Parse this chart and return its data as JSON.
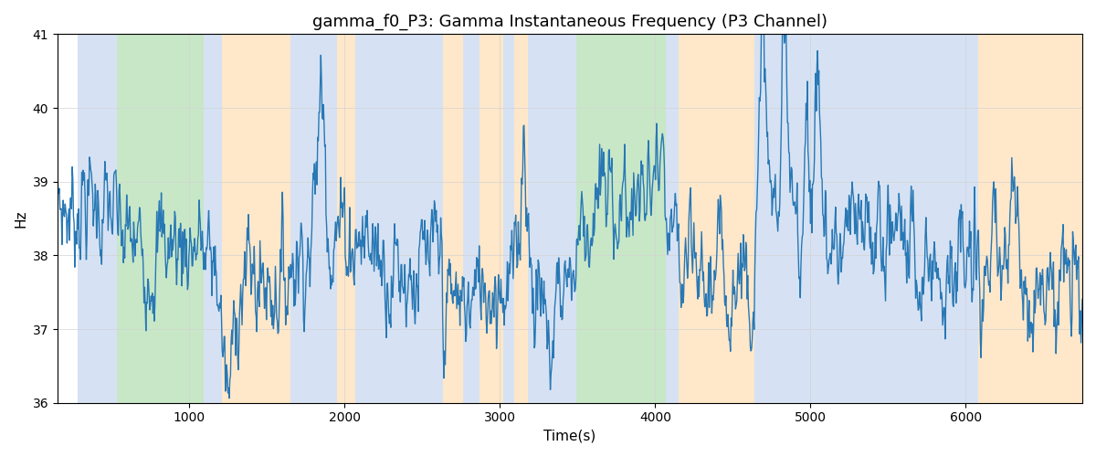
{
  "title": "gamma_f0_P3: Gamma Instantaneous Frequency (P3 Channel)",
  "xlabel": "Time(s)",
  "ylabel": "Hz",
  "ylim": [
    36,
    41
  ],
  "xlim": [
    150,
    6750
  ],
  "line_color": "#2878b5",
  "line_width": 1.0,
  "bg_color": "white",
  "colored_bands": [
    {
      "start": 280,
      "end": 530,
      "color": "#aec6e8",
      "alpha": 0.5
    },
    {
      "start": 530,
      "end": 1090,
      "color": "#90d090",
      "alpha": 0.5
    },
    {
      "start": 1090,
      "end": 1210,
      "color": "#aec6e8",
      "alpha": 0.5
    },
    {
      "start": 1210,
      "end": 1650,
      "color": "#ffd59e",
      "alpha": 0.55
    },
    {
      "start": 1650,
      "end": 1950,
      "color": "#aec6e8",
      "alpha": 0.5
    },
    {
      "start": 1950,
      "end": 2070,
      "color": "#ffd59e",
      "alpha": 0.55
    },
    {
      "start": 2070,
      "end": 2630,
      "color": "#aec6e8",
      "alpha": 0.5
    },
    {
      "start": 2630,
      "end": 2760,
      "color": "#ffd59e",
      "alpha": 0.55
    },
    {
      "start": 2760,
      "end": 2870,
      "color": "#aec6e8",
      "alpha": 0.5
    },
    {
      "start": 2870,
      "end": 3020,
      "color": "#ffd59e",
      "alpha": 0.55
    },
    {
      "start": 3020,
      "end": 3090,
      "color": "#aec6e8",
      "alpha": 0.5
    },
    {
      "start": 3090,
      "end": 3180,
      "color": "#ffd59e",
      "alpha": 0.55
    },
    {
      "start": 3180,
      "end": 3490,
      "color": "#aec6e8",
      "alpha": 0.5
    },
    {
      "start": 3490,
      "end": 4070,
      "color": "#90d090",
      "alpha": 0.5
    },
    {
      "start": 4070,
      "end": 4150,
      "color": "#aec6e8",
      "alpha": 0.5
    },
    {
      "start": 4150,
      "end": 4640,
      "color": "#ffd59e",
      "alpha": 0.55
    },
    {
      "start": 4640,
      "end": 6080,
      "color": "#aec6e8",
      "alpha": 0.5
    },
    {
      "start": 6080,
      "end": 6750,
      "color": "#ffd59e",
      "alpha": 0.55
    }
  ],
  "seed": 7,
  "t_start": 150,
  "t_end": 6750,
  "n_points": 1600,
  "base_freq": 38.0
}
